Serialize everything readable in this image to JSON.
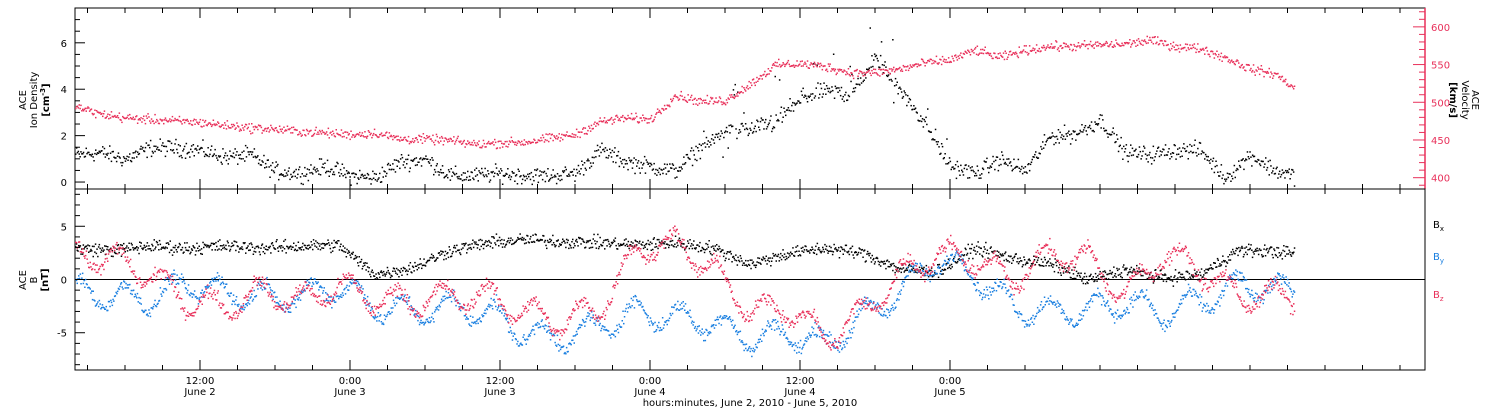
{
  "colors": {
    "density": "#000000",
    "velocity": "#e8305a",
    "bx": "#000000",
    "by": "#1a7fe0",
    "bz": "#e8305a",
    "axis": "#000000"
  },
  "chart_data": [
    {
      "type": "scatter",
      "panel": "ace-density-velocity",
      "ylabel_left": [
        "ACE",
        "Ion Density"
      ],
      "ylabel_left_unit": "[cm",
      "ylabel_left_unit_sup": "-3",
      "ylabel_left_unit_end": "]",
      "ylabel_right": [
        "ACE",
        "Velocity"
      ],
      "ylabel_right_unit": "[km/s]",
      "ylim_left": [
        -0.3,
        7.5
      ],
      "ylim_right": [
        385,
        625
      ],
      "yticks_left": [
        "0",
        "2",
        "4",
        "6"
      ],
      "yticks_right": [
        "400",
        "450",
        "500",
        "550",
        "600"
      ],
      "xlim_hours": [
        0,
        108
      ],
      "series": [
        {
          "name": "Density",
          "axis": "left",
          "color": "#000000",
          "t": [
            0,
            2,
            4,
            6,
            8,
            10,
            12,
            14,
            16,
            18,
            20,
            22,
            24,
            26,
            28,
            30,
            32,
            34,
            36,
            38,
            40,
            42,
            44,
            46,
            48,
            50,
            52,
            54,
            56,
            58,
            60,
            62,
            64,
            66,
            68,
            70,
            72,
            74,
            76,
            78,
            80,
            82,
            84,
            86,
            88,
            90,
            92,
            94,
            96,
            97.5
          ],
          "values": [
            1.2,
            1.3,
            1.0,
            1.5,
            1.5,
            1.4,
            1.1,
            1.2,
            0.5,
            0.4,
            0.7,
            0.3,
            0.2,
            0.9,
            1.0,
            0.3,
            0.3,
            0.4,
            0.3,
            0.3,
            0.4,
            1.4,
            0.9,
            0.7,
            0.5,
            1.5,
            2.2,
            2.3,
            2.6,
            3.6,
            4.0,
            3.8,
            5.4,
            4.0,
            2.5,
            0.7,
            0.4,
            1.0,
            0.5,
            2.0,
            2.1,
            2.7,
            1.3,
            1.2,
            1.4,
            1.4,
            0.2,
            1.2,
            0.5,
            0.3
          ]
        },
        {
          "name": "Velocity",
          "axis": "right",
          "color": "#e8305a",
          "t": [
            0,
            2,
            4,
            6,
            8,
            10,
            12,
            14,
            16,
            18,
            20,
            22,
            24,
            26,
            28,
            30,
            32,
            34,
            36,
            38,
            40,
            42,
            44,
            46,
            48,
            50,
            52,
            54,
            56,
            58,
            60,
            62,
            64,
            66,
            68,
            70,
            72,
            74,
            76,
            78,
            80,
            82,
            84,
            86,
            88,
            90,
            92,
            94,
            96,
            97.5
          ],
          "values": [
            495,
            485,
            480,
            478,
            476,
            474,
            470,
            467,
            465,
            462,
            460,
            458,
            460,
            452,
            452,
            450,
            445,
            447,
            448,
            453,
            458,
            475,
            480,
            478,
            510,
            502,
            503,
            525,
            550,
            552,
            548,
            540,
            540,
            545,
            553,
            557,
            570,
            560,
            570,
            575,
            575,
            577,
            578,
            583,
            575,
            572,
            560,
            545,
            538,
            520
          ]
        }
      ]
    },
    {
      "type": "scatter",
      "panel": "ace-magnetic-field",
      "ylabel": [
        "ACE",
        "B"
      ],
      "ylabel_unit": "[nT]",
      "ylim": [
        -8.5,
        8.5
      ],
      "yticks": [
        "-5",
        "0",
        "5"
      ],
      "xlim_hours": [
        0,
        108
      ],
      "legend_position": "right",
      "series": [
        {
          "name": "B",
          "sub": "x",
          "color": "#000000",
          "t": [
            0,
            3,
            6,
            9,
            12,
            15,
            18,
            21,
            24,
            27,
            30,
            33,
            36,
            39,
            42,
            45,
            48,
            51,
            54,
            57,
            60,
            63,
            66,
            69,
            72,
            75,
            78,
            81,
            84,
            87,
            90,
            93,
            96,
            97.5
          ],
          "values": [
            3.0,
            2.8,
            3.2,
            3.0,
            3.2,
            3.0,
            3.2,
            3.3,
            0.5,
            1.2,
            2.8,
            3.5,
            3.8,
            3.6,
            3.5,
            3.3,
            3.5,
            3.0,
            1.5,
            2.5,
            3.0,
            2.5,
            1.0,
            0.8,
            3.0,
            2.0,
            1.5,
            0.0,
            1.0,
            0.2,
            0.5,
            2.8,
            2.7,
            2.5
          ]
        },
        {
          "name": "B",
          "sub": "y",
          "color": "#1a7fe0",
          "t": [
            0,
            3,
            6,
            9,
            12,
            15,
            18,
            21,
            24,
            27,
            30,
            33,
            36,
            39,
            42,
            45,
            48,
            51,
            54,
            57,
            60,
            63,
            66,
            69,
            72,
            75,
            78,
            81,
            84,
            87,
            90,
            93,
            96,
            97.5
          ],
          "values": [
            -1.0,
            -1.5,
            -1.8,
            -0.3,
            -1.2,
            -1.5,
            -1.6,
            -0.5,
            -2.5,
            -3.0,
            -2.5,
            -3.0,
            -5.0,
            -5.5,
            -4.2,
            -3.0,
            -3.5,
            -4.0,
            -5.5,
            -5.0,
            -6.0,
            -3.5,
            -1.0,
            2.0,
            0.5,
            -2.5,
            -3.0,
            -2.8,
            -2.0,
            -3.2,
            -2.0,
            -0.5,
            -0.8,
            -1.0
          ]
        },
        {
          "name": "B",
          "sub": "z",
          "color": "#e8305a",
          "t": [
            0,
            3,
            6,
            9,
            12,
            15,
            18,
            21,
            24,
            27,
            30,
            33,
            36,
            39,
            42,
            45,
            48,
            51,
            54,
            57,
            60,
            63,
            66,
            69,
            72,
            75,
            78,
            81,
            84,
            87,
            90,
            93,
            96,
            97.5
          ],
          "values": [
            2.5,
            2.0,
            0.5,
            -2.0,
            -2.5,
            -1.0,
            -2.0,
            -0.5,
            -1.8,
            -2.0,
            -1.5,
            -1.5,
            -3.0,
            -4.0,
            -2.5,
            3.0,
            3.5,
            1.0,
            -3.0,
            -2.5,
            -5.5,
            -3.0,
            0.5,
            2.5,
            2.0,
            0.0,
            2.5,
            2.0,
            -1.5,
            2.5,
            1.0,
            -1.5,
            -1.5,
            -1.5
          ]
        }
      ]
    }
  ],
  "x_axis": {
    "xlim_hours": [
      0,
      108
    ],
    "major_ticks": [
      {
        "hour": 10,
        "time": "12:00",
        "date": "June 2"
      },
      {
        "hour": 22,
        "time": "0:00",
        "date": "June 3"
      },
      {
        "hour": 34,
        "time": "12:00",
        "date": "June 3"
      },
      {
        "hour": 46,
        "time": "0:00",
        "date": "June 4"
      },
      {
        "hour": 58,
        "time": "12:00",
        "date": "June 4"
      },
      {
        "hour": 70,
        "time": "0:00",
        "date": "June 5"
      }
    ],
    "title": "hours:minutes,  June  2, 2010 - June  5, 2010"
  }
}
